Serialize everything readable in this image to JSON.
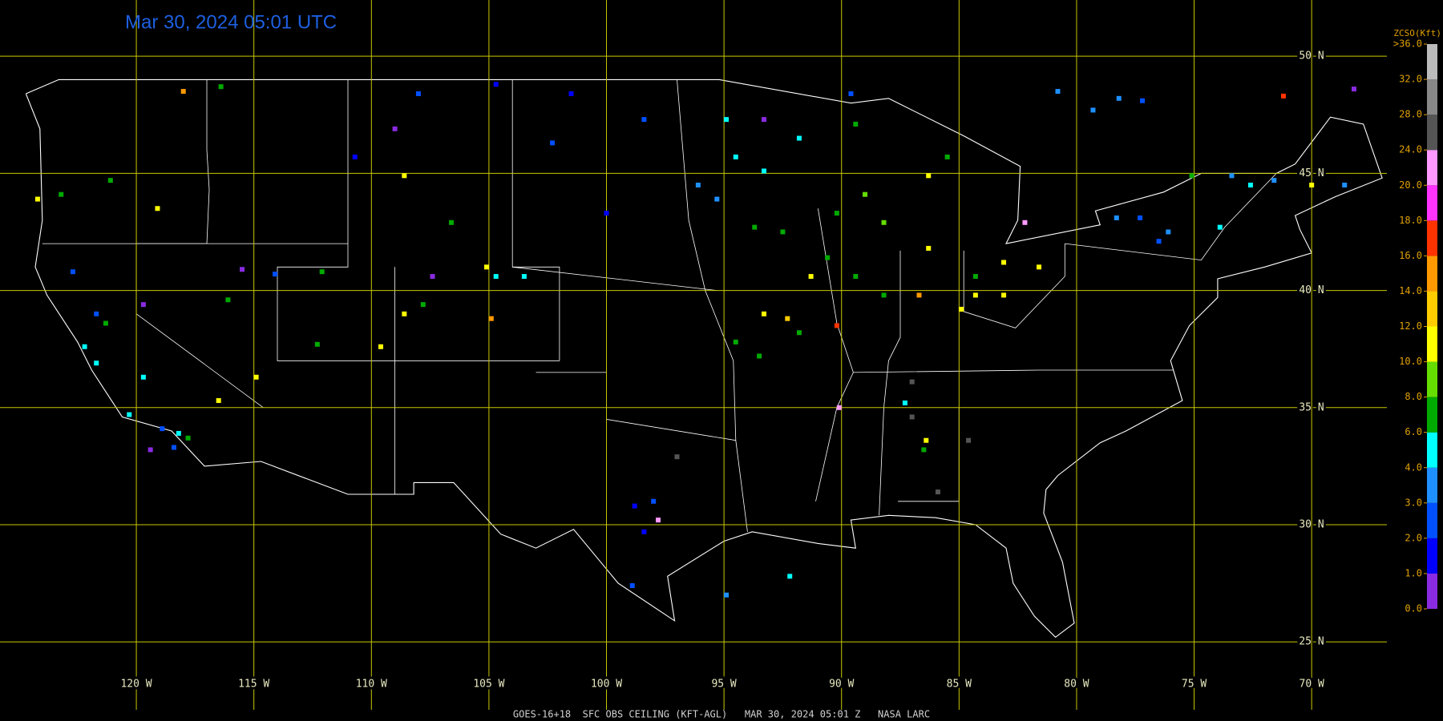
{
  "title": "Mar 30, 2024 05:01 UTC",
  "footer": "GOES-16+18  SFC OBS CEILING (KFT-AGL)   MAR 30, 2024 05:01 Z   NASA LARC",
  "map": {
    "lonlim": [
      -125.8,
      -66.8
    ],
    "latlim": [
      22.1,
      52.4
    ],
    "lat_ticks": [
      {
        "value": 50,
        "label": "50 N"
      },
      {
        "value": 45,
        "label": "45 N"
      },
      {
        "value": 40,
        "label": "40 N"
      },
      {
        "value": 35,
        "label": "35 N"
      },
      {
        "value": 30,
        "label": "30 N"
      },
      {
        "value": 25,
        "label": "25 N"
      }
    ],
    "lon_ticks": [
      {
        "value": -120,
        "label": "120 W"
      },
      {
        "value": -115,
        "label": "115 W"
      },
      {
        "value": -110,
        "label": "110 W"
      },
      {
        "value": -105,
        "label": "105 W"
      },
      {
        "value": -100,
        "label": "100 W"
      },
      {
        "value": -95,
        "label": "95 W"
      },
      {
        "value": -90,
        "label": "90 W"
      },
      {
        "value": -85,
        "label": "85 W"
      },
      {
        "value": -80,
        "label": "80 W"
      },
      {
        "value": -75,
        "label": "75 W"
      },
      {
        "value": -70,
        "label": "70 W"
      }
    ],
    "grid_color": "#c8c800"
  },
  "colorbar": {
    "title": "ZCSO(Kft)",
    "ticks": [
      {
        "value": 0,
        "label": "0.0"
      },
      {
        "value": 1,
        "label": "1.0"
      },
      {
        "value": 2,
        "label": "2.0"
      },
      {
        "value": 3,
        "label": "3.0"
      },
      {
        "value": 4,
        "label": "4.0"
      },
      {
        "value": 6,
        "label": "6.0"
      },
      {
        "value": 8,
        "label": "8.0"
      },
      {
        "value": 10,
        "label": "10.0"
      },
      {
        "value": 12,
        "label": "12.0"
      },
      {
        "value": 14,
        "label": "14.0"
      },
      {
        "value": 16,
        "label": "16.0"
      },
      {
        "value": 18,
        "label": "18.0"
      },
      {
        "value": 20,
        "label": "20.0"
      },
      {
        "value": 24,
        "label": "24.0"
      },
      {
        "value": 28,
        "label": "28.0"
      },
      {
        "value": 32,
        "label": "32.0"
      },
      {
        "value": 36,
        "label": ">36.0"
      }
    ],
    "colors": [
      "#8a2be2",
      "#0000ff",
      "#0050ff",
      "#1e90ff",
      "#00ffff",
      "#00aa00",
      "#66dd00",
      "#ffff00",
      "#ffcc00",
      "#ff9900",
      "#ff3300",
      "#ff33ff",
      "#ff99ff",
      "#555555",
      "#888888",
      "#bbbbbb"
    ]
  },
  "stations": {
    "lon": [
      -94.5,
      -93.3,
      -96.1,
      -95.3,
      -94.9,
      -93.3,
      -91.8,
      -93.7,
      -92.5,
      -90.2,
      -89.0,
      -88.2,
      -90.6,
      -89.4,
      -88.2,
      -86.3,
      -84.3,
      -83.1,
      -84.9,
      -86.7,
      -93.3,
      -92.3,
      -91.3,
      -90.2,
      -94.5,
      -93.5,
      -91.8,
      -90.1,
      -82.2,
      -97.8,
      -98.8,
      -98.4,
      -98.0,
      -98.9,
      -94.9,
      -92.2,
      -97.0,
      -84.6,
      -85.9,
      -87.0,
      -87.0,
      -87.3,
      -86.5,
      -86.4,
      -78.3,
      -77.3,
      -76.1,
      -76.5,
      -73.4,
      -72.6,
      -71.6,
      -71.2,
      -68.6,
      -70.0,
      -75.1,
      -73.9,
      -80.8,
      -78.2,
      -77.2,
      -79.3,
      -108.0,
      -104.7,
      -101.5,
      -98.4,
      -100.0,
      -102.3,
      -109.0,
      -110.7,
      -116.4,
      -118.0,
      -108.6,
      -106.6,
      -105.1,
      -107.4,
      -104.7,
      -103.5,
      -104.9,
      -107.8,
      -108.6,
      -109.6,
      -112.3,
      -112.1,
      -114.1,
      -124.2,
      -123.2,
      -121.1,
      -119.1,
      -122.7,
      -121.7,
      -121.3,
      -122.2,
      -121.7,
      -119.7,
      -120.3,
      -118.9,
      -118.2,
      -117.8,
      -118.4,
      -119.4,
      -119.7,
      -115.5,
      -114.9,
      -116.5,
      -116.1,
      -84.3,
      -83.1,
      -81.6,
      -86.3,
      -85.5,
      -89.4,
      -89.6,
      -68.2
    ],
    "lat": [
      45.7,
      45.1,
      44.5,
      43.9,
      47.3,
      47.3,
      46.5,
      42.7,
      42.5,
      43.3,
      44.1,
      42.9,
      41.4,
      40.6,
      39.8,
      41.8,
      39.8,
      39.8,
      39.2,
      39.8,
      39.0,
      38.8,
      40.6,
      38.5,
      37.8,
      37.2,
      38.2,
      35.0,
      42.9,
      30.2,
      30.8,
      29.7,
      31.0,
      27.4,
      27.0,
      27.8,
      32.9,
      33.6,
      31.4,
      36.1,
      34.6,
      35.2,
      33.2,
      33.6,
      43.1,
      43.1,
      42.5,
      42.1,
      44.9,
      44.5,
      44.7,
      48.3,
      44.5,
      44.5,
      44.9,
      42.7,
      48.5,
      48.2,
      48.1,
      47.7,
      48.4,
      48.8,
      48.4,
      47.3,
      43.3,
      46.3,
      46.9,
      45.7,
      48.7,
      48.5,
      44.9,
      42.9,
      41.0,
      40.6,
      40.6,
      40.6,
      38.8,
      39.4,
      39.0,
      37.6,
      37.7,
      40.8,
      40.7,
      43.9,
      44.1,
      44.7,
      43.5,
      40.8,
      39.0,
      38.6,
      37.6,
      36.9,
      36.3,
      34.7,
      34.1,
      33.9,
      33.7,
      33.3,
      33.2,
      39.4,
      40.9,
      36.3,
      35.3,
      39.6,
      40.6,
      41.2,
      41.0,
      44.9,
      45.7,
      47.1,
      48.4,
      48.6
    ],
    "value": [
      5,
      5,
      3.5,
      3.5,
      5,
      0.5,
      5,
      7,
      7,
      7,
      9,
      9,
      7,
      7,
      7,
      11,
      11,
      11,
      11,
      15,
      11,
      13,
      11,
      17,
      7,
      7,
      7,
      22,
      22,
      22,
      1.5,
      1.5,
      2.5,
      2.5,
      3.5,
      5,
      26,
      26,
      26,
      26,
      26,
      5,
      7,
      11,
      3,
      2.5,
      3,
      2.5,
      3.5,
      5,
      3.5,
      17,
      3.5,
      11,
      7,
      5,
      3.5,
      3.5,
      2.5,
      3.5,
      2.5,
      1.5,
      1.5,
      2.5,
      1.5,
      2.5,
      0.5,
      1.5,
      7,
      15,
      11,
      7,
      11,
      0.5,
      5,
      5,
      15,
      7,
      11,
      11,
      7,
      7,
      2.5,
      11,
      7,
      7,
      11,
      2.5,
      2.5,
      7,
      5,
      5,
      5,
      5,
      2.5,
      5,
      7,
      2,
      0.5,
      0.5,
      0.5,
      11,
      11,
      7,
      7,
      11,
      11,
      11,
      7,
      7,
      2.5,
      0.5
    ]
  }
}
